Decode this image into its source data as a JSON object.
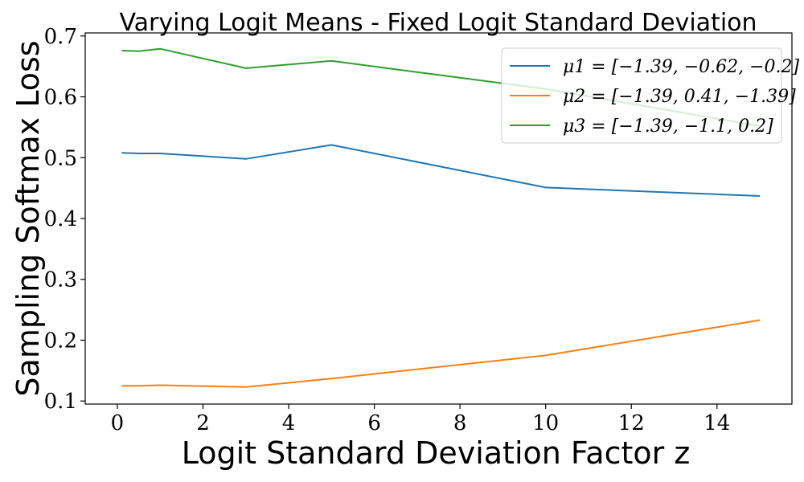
{
  "chart_data": {
    "type": "line",
    "title": "Varying Logit Means - Fixed Logit Standard Deviation",
    "xlabel": "Logit Standard Deviation Factor z",
    "ylabel": "Sampling Softmax Loss",
    "xlim": [
      -0.75,
      15.75
    ],
    "ylim": [
      0.095,
      0.705
    ],
    "xticks": [
      0,
      2,
      4,
      6,
      8,
      10,
      12,
      14
    ],
    "yticks": [
      0.1,
      0.2,
      0.3,
      0.4,
      0.5,
      0.6,
      0.7
    ],
    "x": [
      0.1,
      0.5,
      1,
      3,
      5,
      10,
      15
    ],
    "grid": false,
    "legend_position": "top-right",
    "series": [
      {
        "name": "μ1 = [−1.39, −0.62, −0.2]",
        "color": "#1f77b4",
        "values": [
          0.508,
          0.507,
          0.507,
          0.498,
          0.521,
          0.451,
          0.437
        ]
      },
      {
        "name": "μ2 = [−1.39, 0.41, −1.39]",
        "color": "#ff7f0e",
        "values": [
          0.125,
          0.125,
          0.126,
          0.123,
          0.137,
          0.175,
          0.233
        ]
      },
      {
        "name": "μ3 = [−1.39, −1.1, 0.2]",
        "color": "#2ca02c",
        "values": [
          0.676,
          0.675,
          0.679,
          0.647,
          0.659,
          0.613,
          0.552
        ]
      }
    ]
  }
}
